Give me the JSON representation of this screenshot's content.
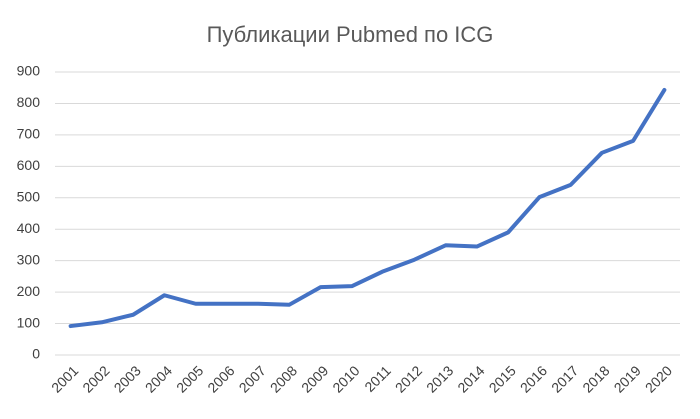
{
  "chart_data": {
    "type": "line",
    "title": "Публикации Pubmed по ICG",
    "categories": [
      "2001",
      "2002",
      "2003",
      "2004",
      "2005",
      "2006",
      "2007",
      "2008",
      "2009",
      "2010",
      "2011",
      "2012",
      "2013",
      "2014",
      "2015",
      "2016",
      "2017",
      "2018",
      "2019",
      "2020"
    ],
    "values": [
      92,
      104,
      128,
      190,
      163,
      163,
      163,
      160,
      216,
      219,
      266,
      303,
      349,
      345,
      390,
      502,
      541,
      643,
      681,
      843
    ],
    "color": "#4472c4",
    "ylim": [
      0,
      900
    ],
    "yticks": [
      0,
      100,
      200,
      300,
      400,
      500,
      600,
      700,
      800,
      900
    ],
    "grid": true
  }
}
